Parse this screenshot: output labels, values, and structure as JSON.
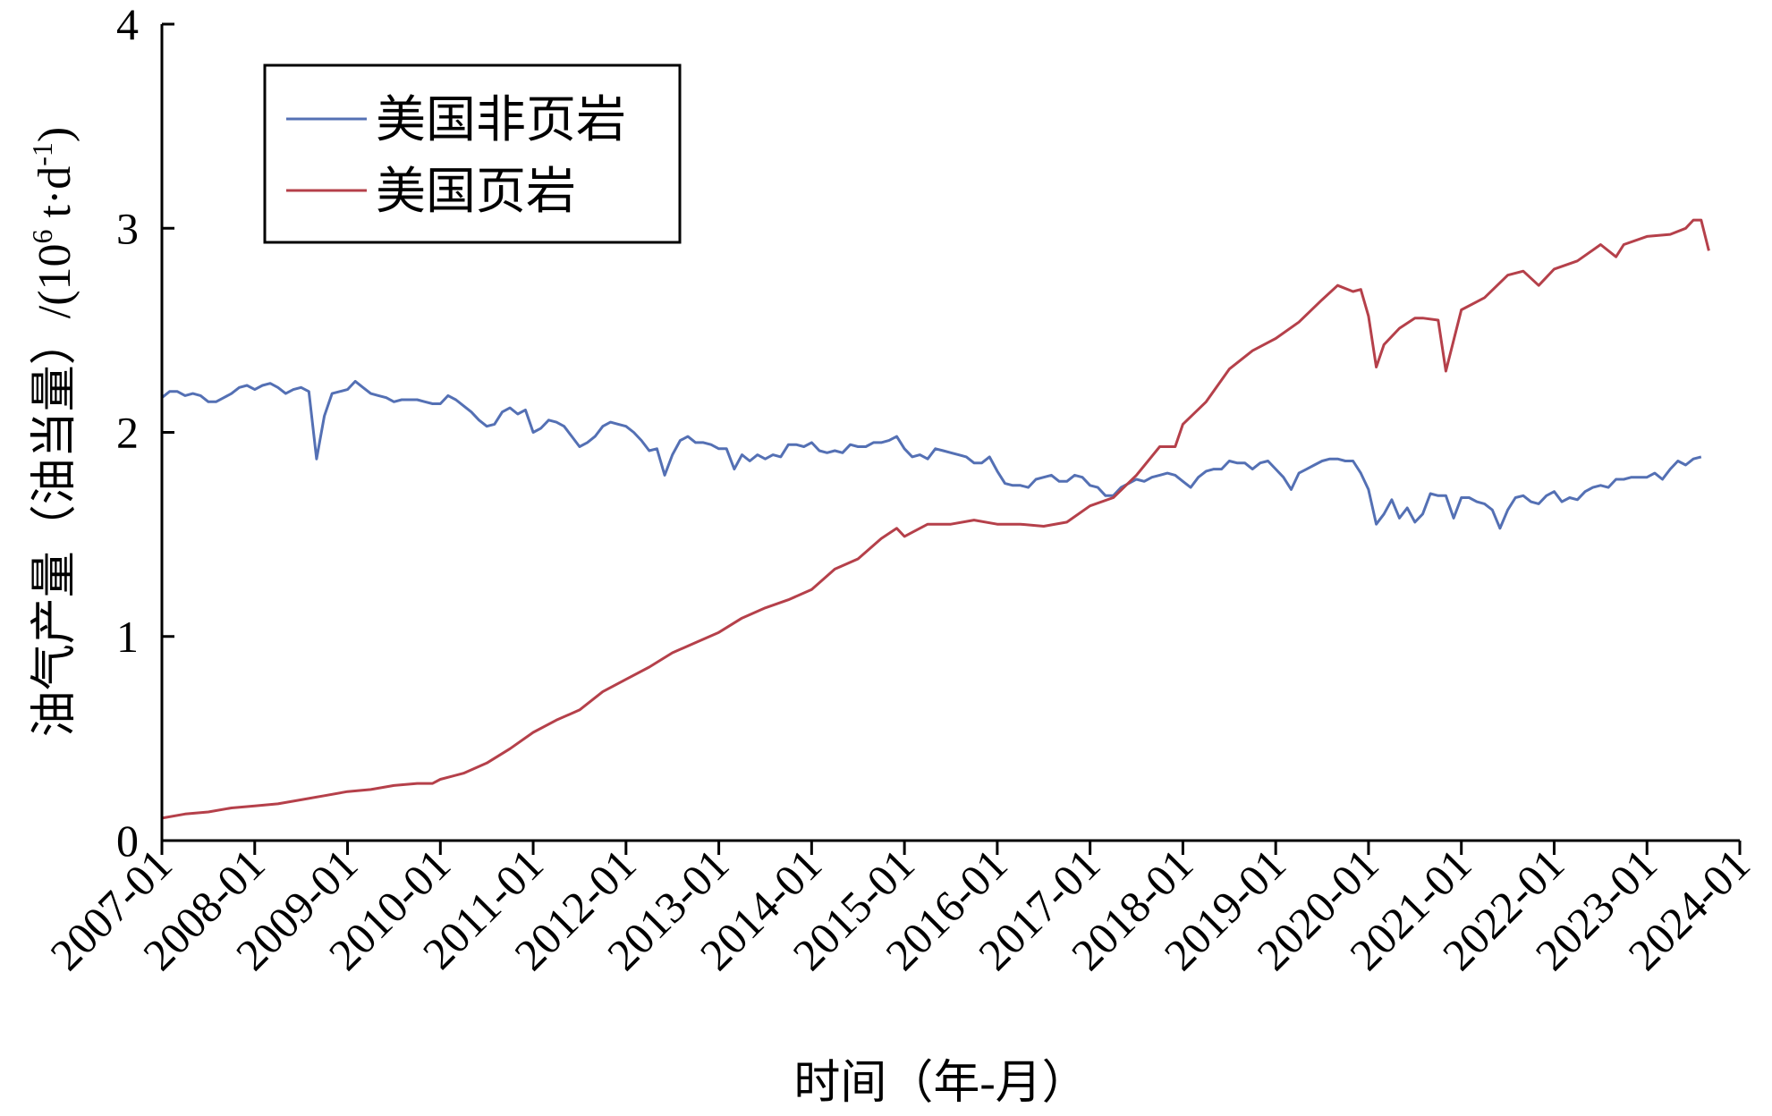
{
  "chart_data": {
    "type": "line",
    "title": "",
    "xlabel": "时间（年-月）",
    "ylabel": "油气产量（油当量）/(10⁶ t·d⁻¹)",
    "ylabel_parts": {
      "main": "油气产量（油当量）/(10",
      "sup1": "6",
      "mid": " t·d",
      "sup2": "-1",
      "end": ")"
    },
    "ylim": [
      0,
      4
    ],
    "yticks": [
      "0",
      "1",
      "2",
      "3",
      "4"
    ],
    "xlim": [
      "2007-01",
      "2024-01"
    ],
    "xticks": [
      "2007-01",
      "2008-01",
      "2009-01",
      "2010-01",
      "2011-01",
      "2012-01",
      "2013-01",
      "2014-01",
      "2015-01",
      "2016-01",
      "2017-01",
      "2018-01",
      "2019-01",
      "2020-01",
      "2021-01",
      "2022-01",
      "2023-01",
      "2024-01"
    ],
    "grid": false,
    "legend_position": "top-left",
    "series": [
      {
        "name": "美国非页岩",
        "color": "#5470b4",
        "points": [
          [
            "2007-01",
            2.17
          ],
          [
            "2007-02",
            2.2
          ],
          [
            "2007-03",
            2.2
          ],
          [
            "2007-04",
            2.18
          ],
          [
            "2007-05",
            2.19
          ],
          [
            "2007-06",
            2.18
          ],
          [
            "2007-07",
            2.15
          ],
          [
            "2007-08",
            2.15
          ],
          [
            "2007-09",
            2.17
          ],
          [
            "2007-10",
            2.19
          ],
          [
            "2007-11",
            2.22
          ],
          [
            "2007-12",
            2.23
          ],
          [
            "2008-01",
            2.21
          ],
          [
            "2008-02",
            2.23
          ],
          [
            "2008-03",
            2.24
          ],
          [
            "2008-04",
            2.22
          ],
          [
            "2008-05",
            2.19
          ],
          [
            "2008-06",
            2.21
          ],
          [
            "2008-07",
            2.22
          ],
          [
            "2008-08",
            2.2
          ],
          [
            "2008-09",
            1.87
          ],
          [
            "2008-10",
            2.08
          ],
          [
            "2008-11",
            2.19
          ],
          [
            "2008-12",
            2.2
          ],
          [
            "2009-01",
            2.21
          ],
          [
            "2009-02",
            2.25
          ],
          [
            "2009-03",
            2.22
          ],
          [
            "2009-04",
            2.19
          ],
          [
            "2009-05",
            2.18
          ],
          [
            "2009-06",
            2.17
          ],
          [
            "2009-07",
            2.15
          ],
          [
            "2009-08",
            2.16
          ],
          [
            "2009-09",
            2.16
          ],
          [
            "2009-10",
            2.16
          ],
          [
            "2009-11",
            2.15
          ],
          [
            "2009-12",
            2.14
          ],
          [
            "2010-01",
            2.14
          ],
          [
            "2010-02",
            2.18
          ],
          [
            "2010-03",
            2.16
          ],
          [
            "2010-04",
            2.13
          ],
          [
            "2010-05",
            2.1
          ],
          [
            "2010-06",
            2.06
          ],
          [
            "2010-07",
            2.03
          ],
          [
            "2010-08",
            2.04
          ],
          [
            "2010-09",
            2.1
          ],
          [
            "2010-10",
            2.12
          ],
          [
            "2010-11",
            2.09
          ],
          [
            "2010-12",
            2.11
          ],
          [
            "2011-01",
            2.0
          ],
          [
            "2011-02",
            2.02
          ],
          [
            "2011-03",
            2.06
          ],
          [
            "2011-04",
            2.05
          ],
          [
            "2011-05",
            2.03
          ],
          [
            "2011-06",
            1.98
          ],
          [
            "2011-07",
            1.93
          ],
          [
            "2011-08",
            1.95
          ],
          [
            "2011-09",
            1.98
          ],
          [
            "2011-10",
            2.03
          ],
          [
            "2011-11",
            2.05
          ],
          [
            "2011-12",
            2.04
          ],
          [
            "2012-01",
            2.03
          ],
          [
            "2012-02",
            2.0
          ],
          [
            "2012-03",
            1.96
          ],
          [
            "2012-04",
            1.91
          ],
          [
            "2012-05",
            1.92
          ],
          [
            "2012-06",
            1.79
          ],
          [
            "2012-07",
            1.89
          ],
          [
            "2012-08",
            1.96
          ],
          [
            "2012-09",
            1.98
          ],
          [
            "2012-10",
            1.95
          ],
          [
            "2012-11",
            1.95
          ],
          [
            "2012-12",
            1.94
          ],
          [
            "2013-01",
            1.92
          ],
          [
            "2013-02",
            1.92
          ],
          [
            "2013-03",
            1.82
          ],
          [
            "2013-04",
            1.89
          ],
          [
            "2013-05",
            1.86
          ],
          [
            "2013-06",
            1.89
          ],
          [
            "2013-07",
            1.87
          ],
          [
            "2013-08",
            1.89
          ],
          [
            "2013-09",
            1.88
          ],
          [
            "2013-10",
            1.94
          ],
          [
            "2013-11",
            1.94
          ],
          [
            "2013-12",
            1.93
          ],
          [
            "2014-01",
            1.95
          ],
          [
            "2014-02",
            1.91
          ],
          [
            "2014-03",
            1.9
          ],
          [
            "2014-04",
            1.91
          ],
          [
            "2014-05",
            1.9
          ],
          [
            "2014-06",
            1.94
          ],
          [
            "2014-07",
            1.93
          ],
          [
            "2014-08",
            1.93
          ],
          [
            "2014-09",
            1.95
          ],
          [
            "2014-10",
            1.95
          ],
          [
            "2014-11",
            1.96
          ],
          [
            "2014-12",
            1.98
          ],
          [
            "2015-01",
            1.92
          ],
          [
            "2015-02",
            1.88
          ],
          [
            "2015-03",
            1.89
          ],
          [
            "2015-04",
            1.87
          ],
          [
            "2015-05",
            1.92
          ],
          [
            "2015-06",
            1.91
          ],
          [
            "2015-07",
            1.9
          ],
          [
            "2015-08",
            1.89
          ],
          [
            "2015-09",
            1.88
          ],
          [
            "2015-10",
            1.85
          ],
          [
            "2015-11",
            1.85
          ],
          [
            "2015-12",
            1.88
          ],
          [
            "2016-01",
            1.81
          ],
          [
            "2016-02",
            1.75
          ],
          [
            "2016-03",
            1.74
          ],
          [
            "2016-04",
            1.74
          ],
          [
            "2016-05",
            1.73
          ],
          [
            "2016-06",
            1.77
          ],
          [
            "2016-07",
            1.78
          ],
          [
            "2016-08",
            1.79
          ],
          [
            "2016-09",
            1.76
          ],
          [
            "2016-10",
            1.76
          ],
          [
            "2016-11",
            1.79
          ],
          [
            "2016-12",
            1.78
          ],
          [
            "2017-01",
            1.74
          ],
          [
            "2017-02",
            1.73
          ],
          [
            "2017-03",
            1.69
          ],
          [
            "2017-04",
            1.69
          ],
          [
            "2017-05",
            1.73
          ],
          [
            "2017-06",
            1.75
          ],
          [
            "2017-07",
            1.77
          ],
          [
            "2017-08",
            1.76
          ],
          [
            "2017-09",
            1.78
          ],
          [
            "2017-10",
            1.79
          ],
          [
            "2017-11",
            1.8
          ],
          [
            "2017-12",
            1.79
          ],
          [
            "2018-01",
            1.76
          ],
          [
            "2018-02",
            1.73
          ],
          [
            "2018-03",
            1.78
          ],
          [
            "2018-04",
            1.81
          ],
          [
            "2018-05",
            1.82
          ],
          [
            "2018-06",
            1.82
          ],
          [
            "2018-07",
            1.86
          ],
          [
            "2018-08",
            1.85
          ],
          [
            "2018-09",
            1.85
          ],
          [
            "2018-10",
            1.82
          ],
          [
            "2018-11",
            1.85
          ],
          [
            "2018-12",
            1.86
          ],
          [
            "2019-01",
            1.82
          ],
          [
            "2019-02",
            1.78
          ],
          [
            "2019-03",
            1.72
          ],
          [
            "2019-04",
            1.8
          ],
          [
            "2019-05",
            1.82
          ],
          [
            "2019-06",
            1.84
          ],
          [
            "2019-07",
            1.86
          ],
          [
            "2019-08",
            1.87
          ],
          [
            "2019-09",
            1.87
          ],
          [
            "2019-10",
            1.86
          ],
          [
            "2019-11",
            1.86
          ],
          [
            "2019-12",
            1.8
          ],
          [
            "2020-01",
            1.72
          ],
          [
            "2020-02",
            1.55
          ],
          [
            "2020-03",
            1.6
          ],
          [
            "2020-04",
            1.67
          ],
          [
            "2020-05",
            1.58
          ],
          [
            "2020-06",
            1.63
          ],
          [
            "2020-07",
            1.56
          ],
          [
            "2020-08",
            1.6
          ],
          [
            "2020-09",
            1.7
          ],
          [
            "2020-10",
            1.69
          ],
          [
            "2020-11",
            1.69
          ],
          [
            "2020-12",
            1.58
          ],
          [
            "2021-01",
            1.68
          ],
          [
            "2021-02",
            1.68
          ],
          [
            "2021-03",
            1.66
          ],
          [
            "2021-04",
            1.65
          ],
          [
            "2021-05",
            1.62
          ],
          [
            "2021-06",
            1.53
          ],
          [
            "2021-07",
            1.62
          ],
          [
            "2021-08",
            1.68
          ],
          [
            "2021-09",
            1.69
          ],
          [
            "2021-10",
            1.66
          ],
          [
            "2021-11",
            1.65
          ],
          [
            "2021-12",
            1.69
          ],
          [
            "2022-01",
            1.71
          ],
          [
            "2022-02",
            1.66
          ],
          [
            "2022-03",
            1.68
          ],
          [
            "2022-04",
            1.67
          ],
          [
            "2022-05",
            1.71
          ],
          [
            "2022-06",
            1.73
          ],
          [
            "2022-07",
            1.74
          ],
          [
            "2022-08",
            1.73
          ],
          [
            "2022-09",
            1.77
          ],
          [
            "2022-10",
            1.77
          ],
          [
            "2022-11",
            1.78
          ],
          [
            "2022-12",
            1.78
          ],
          [
            "2023-01",
            1.78
          ],
          [
            "2023-02",
            1.8
          ],
          [
            "2023-03",
            1.77
          ],
          [
            "2023-04",
            1.82
          ],
          [
            "2023-05",
            1.86
          ],
          [
            "2023-06",
            1.84
          ],
          [
            "2023-07",
            1.87
          ],
          [
            "2023-08",
            1.88
          ]
        ]
      },
      {
        "name": "美国页岩",
        "color": "#b5404a",
        "points": [
          [
            "2007-01",
            0.11
          ],
          [
            "2007-04",
            0.13
          ],
          [
            "2007-07",
            0.14
          ],
          [
            "2007-10",
            0.16
          ],
          [
            "2008-01",
            0.17
          ],
          [
            "2008-04",
            0.18
          ],
          [
            "2008-07",
            0.2
          ],
          [
            "2008-10",
            0.22
          ],
          [
            "2009-01",
            0.24
          ],
          [
            "2009-04",
            0.25
          ],
          [
            "2009-07",
            0.27
          ],
          [
            "2009-10",
            0.28
          ],
          [
            "2009-12",
            0.28
          ],
          [
            "2010-01",
            0.3
          ],
          [
            "2010-04",
            0.33
          ],
          [
            "2010-07",
            0.38
          ],
          [
            "2010-10",
            0.45
          ],
          [
            "2011-01",
            0.53
          ],
          [
            "2011-04",
            0.59
          ],
          [
            "2011-07",
            0.64
          ],
          [
            "2011-10",
            0.73
          ],
          [
            "2012-01",
            0.79
          ],
          [
            "2012-04",
            0.85
          ],
          [
            "2012-07",
            0.92
          ],
          [
            "2012-10",
            0.97
          ],
          [
            "2013-01",
            1.02
          ],
          [
            "2013-04",
            1.09
          ],
          [
            "2013-07",
            1.14
          ],
          [
            "2013-10",
            1.18
          ],
          [
            "2014-01",
            1.23
          ],
          [
            "2014-04",
            1.33
          ],
          [
            "2014-07",
            1.38
          ],
          [
            "2014-10",
            1.48
          ],
          [
            "2014-12",
            1.53
          ],
          [
            "2015-01",
            1.49
          ],
          [
            "2015-04",
            1.55
          ],
          [
            "2015-07",
            1.55
          ],
          [
            "2015-10",
            1.57
          ],
          [
            "2016-01",
            1.55
          ],
          [
            "2016-04",
            1.55
          ],
          [
            "2016-07",
            1.54
          ],
          [
            "2016-10",
            1.56
          ],
          [
            "2017-01",
            1.64
          ],
          [
            "2017-04",
            1.68
          ],
          [
            "2017-07",
            1.79
          ],
          [
            "2017-10",
            1.93
          ],
          [
            "2017-12",
            1.93
          ],
          [
            "2018-01",
            2.04
          ],
          [
            "2018-04",
            2.15
          ],
          [
            "2018-07",
            2.31
          ],
          [
            "2018-10",
            2.4
          ],
          [
            "2019-01",
            2.46
          ],
          [
            "2019-04",
            2.54
          ],
          [
            "2019-07",
            2.65
          ],
          [
            "2019-09",
            2.72
          ],
          [
            "2019-11",
            2.69
          ],
          [
            "2019-12",
            2.7
          ],
          [
            "2020-01",
            2.57
          ],
          [
            "2020-02",
            2.32
          ],
          [
            "2020-03",
            2.43
          ],
          [
            "2020-05",
            2.51
          ],
          [
            "2020-07",
            2.56
          ],
          [
            "2020-08",
            2.56
          ],
          [
            "2020-10",
            2.55
          ],
          [
            "2020-11",
            2.3
          ],
          [
            "2021-01",
            2.6
          ],
          [
            "2021-04",
            2.66
          ],
          [
            "2021-07",
            2.77
          ],
          [
            "2021-09",
            2.79
          ],
          [
            "2021-11",
            2.72
          ],
          [
            "2022-01",
            2.8
          ],
          [
            "2022-04",
            2.84
          ],
          [
            "2022-07",
            2.92
          ],
          [
            "2022-09",
            2.86
          ],
          [
            "2022-10",
            2.92
          ],
          [
            "2023-01",
            2.96
          ],
          [
            "2023-04",
            2.97
          ],
          [
            "2023-06",
            3.0
          ],
          [
            "2023-07",
            3.04
          ],
          [
            "2023-08",
            3.04
          ],
          [
            "2023-09",
            2.89
          ]
        ]
      }
    ]
  }
}
